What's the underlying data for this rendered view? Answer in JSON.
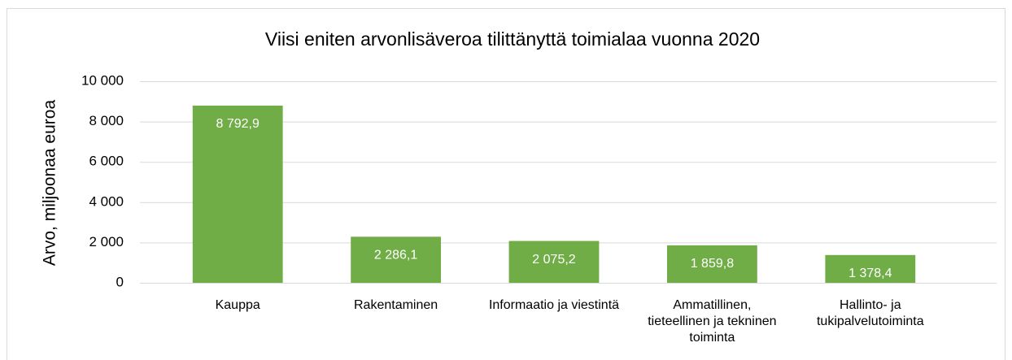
{
  "chart_data": {
    "type": "bar",
    "title": "Viisi eniten arvonlisäveroa tilittänyttä toimialaa vuonna 2020",
    "y_label": "Arvo, miljoonaa euroa",
    "categories": [
      "Kauppa",
      "Rakentaminen",
      "Informaatio ja viestintä",
      "Ammatillinen, tieteellinen ja tekninen toiminta",
      "Hallinto- ja tukipalvelutoiminta"
    ],
    "values": [
      8792.9,
      2286.1,
      2075.2,
      1859.8,
      1378.4
    ],
    "value_labels": [
      "8 792,9",
      "2 286,1",
      "2 075,2",
      "1 859,8",
      "1 378,4"
    ],
    "color": "#70ad47",
    "ylim": [
      0,
      10000
    ],
    "yticks": [
      0,
      {
        "value": 2000,
        "label": "2 000"
      },
      {
        "value": 4000,
        "label": "4 000"
      },
      {
        "value": 6000,
        "label": "6 000"
      },
      {
        "value": 8000,
        "label": "8 000"
      },
      {
        "value": 10000,
        "label": "10 000"
      }
    ],
    "grid": true
  }
}
